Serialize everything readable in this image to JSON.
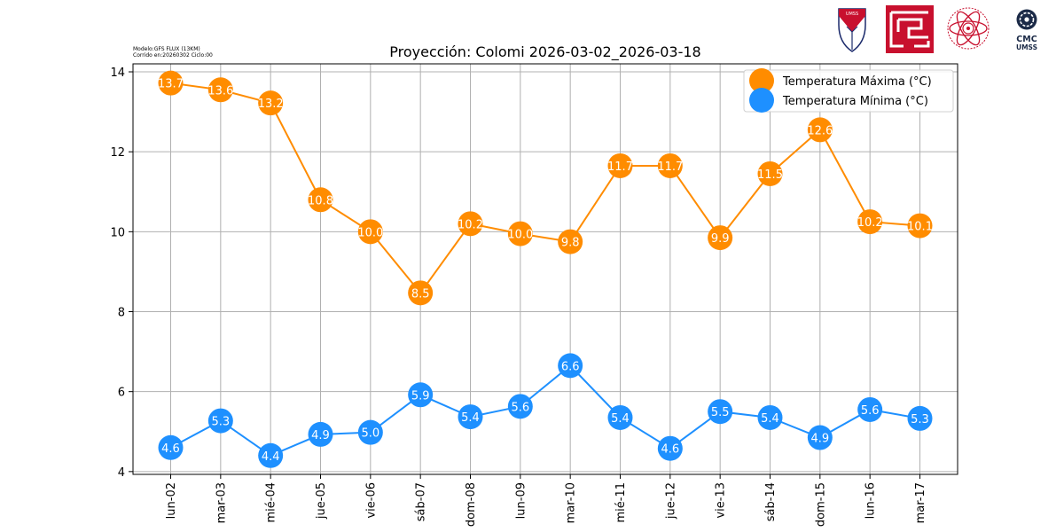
{
  "header": {
    "model_line": "Modelo:GFS FLUX (13KM)",
    "run_line": "Corrido en:20260302 Ciclo:00"
  },
  "logos": {
    "umss_shield_text": "UMSS",
    "cmc_top": "CMC",
    "cmc_bottom": "UMSS"
  },
  "colors": {
    "max": "#ff8c00",
    "min": "#1e90ff",
    "grid": "#b0b0b0",
    "point_label": "#ffffff"
  },
  "chart_data": {
    "type": "line",
    "title": "Proyección: Colomi 2026-03-02_2026-03-18",
    "xlabel": "",
    "ylabel": "",
    "categories": [
      "lun-02",
      "mar-03",
      "mié-04",
      "jue-05",
      "vie-06",
      "sáb-07",
      "dom-08",
      "lun-09",
      "mar-10",
      "mié-11",
      "jue-12",
      "vie-13",
      "sáb-14",
      "dom-15",
      "lun-16",
      "mar-17"
    ],
    "series": [
      {
        "name": "Temperatura Máxima  (°C)",
        "color": "#ff8c00",
        "values": [
          13.72,
          13.55,
          13.22,
          10.8,
          10.0,
          8.47,
          10.2,
          9.95,
          9.75,
          11.65,
          11.65,
          9.85,
          11.45,
          12.55,
          10.25,
          10.15
        ],
        "labels": [
          "13.7",
          "13.6",
          "13.2",
          "10.8",
          "10.0",
          "8.5",
          "10.2",
          "10.0",
          "9.8",
          "11.7",
          "11.7",
          "9.9",
          "11.5",
          "12.6",
          "10.2",
          "10.1"
        ]
      },
      {
        "name": "Temperatura Mínima  (°C)",
        "color": "#1e90ff",
        "values": [
          4.6,
          5.27,
          4.4,
          4.93,
          4.98,
          5.92,
          5.37,
          5.63,
          6.65,
          5.35,
          4.58,
          5.5,
          5.35,
          4.85,
          5.55,
          5.33
        ],
        "labels": [
          "4.6",
          "5.3",
          "4.4",
          "4.9",
          "5.0",
          "5.9",
          "5.4",
          "5.6",
          "6.6",
          "5.4",
          "4.6",
          "5.5",
          "5.4",
          "4.9",
          "5.6",
          "5.3"
        ]
      }
    ],
    "ylim": [
      3.93,
      14.2
    ],
    "yticks": [
      "4",
      "6",
      "8",
      "10",
      "12",
      "14"
    ],
    "grid": true,
    "legend": "top-right"
  }
}
